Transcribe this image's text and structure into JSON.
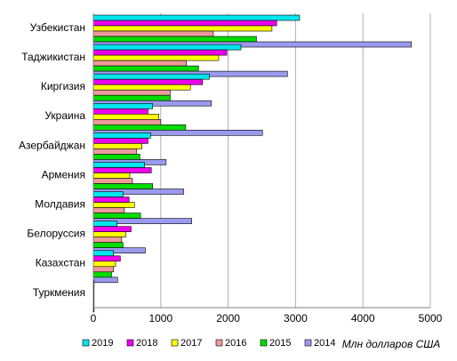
{
  "chart_data": {
    "type": "bar",
    "orientation": "horizontal",
    "categories": [
      "Узбекистан",
      "Таджикистан",
      "Киргизия",
      "Украина",
      "Азербайджан",
      "Армения",
      "Молдавия",
      "Белоруссия",
      "Казахстан",
      "Туркмения"
    ],
    "series": [
      {
        "name": "2019",
        "color": "#00e5ee",
        "values": [
          3060,
          2190,
          1720,
          880,
          850,
          760,
          440,
          350,
          300,
          10
        ]
      },
      {
        "name": "2018",
        "color": "#ee00ee",
        "values": [
          2720,
          1980,
          1620,
          810,
          810,
          860,
          530,
          560,
          400,
          10
        ]
      },
      {
        "name": "2017",
        "color": "#ffff00",
        "values": [
          2650,
          1860,
          1440,
          970,
          720,
          540,
          610,
          480,
          330,
          10
        ]
      },
      {
        "name": "2016",
        "color": "#ee9a9a",
        "values": [
          1780,
          1380,
          1140,
          1000,
          640,
          580,
          460,
          420,
          300,
          10
        ]
      },
      {
        "name": "2015",
        "color": "#00dd00",
        "values": [
          2420,
          1560,
          1140,
          1370,
          690,
          880,
          700,
          440,
          270,
          10
        ]
      },
      {
        "name": "2014",
        "color": "#9999ee",
        "values": [
          4720,
          2880,
          1750,
          2510,
          1080,
          1340,
          1460,
          770,
          360,
          10
        ]
      }
    ],
    "xlim": [
      0,
      5000
    ],
    "xticks": [
      "0",
      "1000",
      "2000",
      "3000",
      "4000",
      "5000"
    ],
    "xlabel": "Млн долларов США",
    "grid": "vertical",
    "legend": "bottom"
  }
}
